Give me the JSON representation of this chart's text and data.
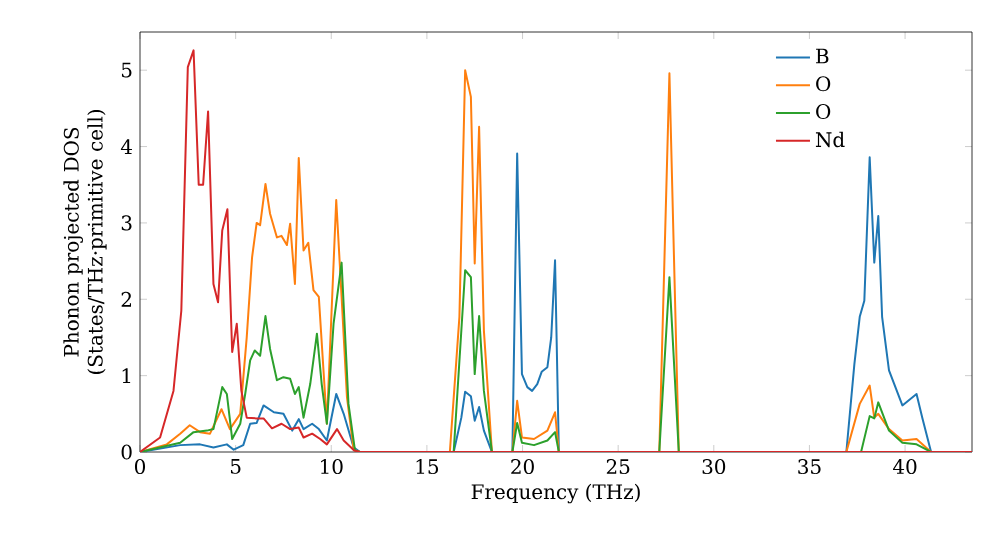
{
  "chart_data": {
    "type": "line",
    "xlabel": "Frequency (THz)",
    "ylabel": "Phonon projected DOS (States/THz·primitive cell)",
    "xlim": [
      0,
      43.5
    ],
    "ylim": [
      0,
      5.5
    ],
    "xticks": [
      0,
      5,
      10,
      15,
      20,
      25,
      30,
      35,
      40
    ],
    "yticks": [
      0,
      1,
      2,
      3,
      4,
      5
    ],
    "legend": "top right",
    "grid": false,
    "marker": "none",
    "line_style": "solid",
    "series": [
      {
        "name": "B",
        "color": "#1f77b4",
        "x": [
          0,
          2.1,
          3.14,
          3.84,
          4.54,
          4.9,
          5.4,
          5.76,
          6.1,
          6.46,
          7.0,
          7.5,
          7.96,
          8.3,
          8.55,
          9.0,
          9.35,
          9.77,
          10.26,
          10.65,
          11.17,
          11.5,
          16.4,
          16.8,
          17.0,
          17.3,
          17.5,
          17.73,
          17.98,
          18.4,
          19.47,
          19.72,
          19.97,
          20.25,
          20.5,
          20.77,
          21.0,
          21.3,
          21.5,
          21.7,
          21.9,
          36.93,
          37.35,
          37.63,
          37.87,
          38.15,
          38.39,
          38.6,
          38.8,
          39.16,
          39.86,
          40.6,
          40.9,
          41.36,
          43.5
        ],
        "values": [
          0,
          0.09,
          0.1,
          0.06,
          0.1,
          0.03,
          0.09,
          0.37,
          0.38,
          0.61,
          0.52,
          0.5,
          0.28,
          0.43,
          0.3,
          0.37,
          0.3,
          0.15,
          0.76,
          0.5,
          0.06,
          0,
          0,
          0.45,
          0.79,
          0.73,
          0.41,
          0.59,
          0.28,
          0,
          0,
          3.91,
          1.02,
          0.85,
          0.8,
          0.89,
          1.05,
          1.11,
          1.5,
          2.51,
          0,
          0,
          1.15,
          1.77,
          1.98,
          3.86,
          2.48,
          3.09,
          1.77,
          1.07,
          0.61,
          0.76,
          0.45,
          0,
          0
        ]
      },
      {
        "name": "O",
        "color": "#ff7f0e",
        "x": [
          0,
          1.4,
          2.1,
          2.6,
          3.14,
          3.66,
          4.26,
          4.7,
          5.24,
          5.58,
          5.86,
          6.1,
          6.28,
          6.56,
          6.8,
          7.16,
          7.4,
          7.68,
          7.85,
          8.1,
          8.3,
          8.55,
          8.8,
          9.07,
          9.35,
          9.77,
          10.26,
          10.54,
          10.82,
          11.17,
          11.5,
          16.2,
          16.7,
          17.0,
          17.3,
          17.5,
          17.73,
          17.98,
          18.4,
          19.47,
          19.72,
          19.97,
          20.6,
          21.3,
          21.7,
          21.9,
          27.15,
          27.68,
          28.17,
          36.93,
          37.63,
          38.15,
          38.39,
          38.6,
          39.16,
          39.86,
          40.6,
          41.36,
          43.5
        ],
        "values": [
          0,
          0.1,
          0.24,
          0.35,
          0.26,
          0.24,
          0.56,
          0.3,
          0.5,
          1.5,
          2.55,
          3.0,
          2.97,
          3.51,
          3.12,
          2.81,
          2.83,
          2.71,
          2.99,
          2.2,
          3.85,
          2.64,
          2.74,
          2.12,
          2.03,
          0.37,
          3.3,
          2.03,
          0.72,
          0.03,
          0,
          0,
          1.77,
          5.0,
          4.65,
          2.47,
          4.26,
          1.59,
          0,
          0,
          0.67,
          0.19,
          0.17,
          0.28,
          0.52,
          0,
          0,
          4.96,
          0,
          0,
          0.63,
          0.87,
          0.45,
          0.5,
          0.3,
          0.15,
          0.17,
          0,
          0
        ]
      },
      {
        "name": "O",
        "color": "#2ca02c",
        "x": [
          0,
          2.1,
          2.8,
          3.5,
          3.84,
          4.3,
          4.54,
          4.82,
          5.24,
          5.5,
          5.76,
          6.0,
          6.28,
          6.56,
          6.8,
          7.16,
          7.5,
          7.85,
          8.1,
          8.3,
          8.55,
          8.9,
          9.25,
          9.5,
          9.77,
          10.12,
          10.54,
          10.9,
          11.24,
          11.5,
          16.4,
          17.0,
          17.3,
          17.5,
          17.73,
          17.98,
          18.4,
          19.47,
          19.72,
          19.97,
          20.6,
          21.3,
          21.7,
          21.9,
          27.15,
          27.68,
          28.17,
          37.7,
          38.15,
          38.39,
          38.6,
          39.16,
          39.86,
          40.6,
          41.36,
          43.5
        ],
        "values": [
          0,
          0.12,
          0.26,
          0.28,
          0.3,
          0.85,
          0.76,
          0.17,
          0.37,
          0.76,
          1.2,
          1.33,
          1.26,
          1.78,
          1.35,
          0.94,
          0.98,
          0.96,
          0.76,
          0.85,
          0.45,
          0.89,
          1.55,
          0.89,
          0.37,
          1.68,
          2.48,
          0.63,
          0.02,
          0,
          0,
          2.38,
          2.29,
          1.02,
          1.78,
          0.8,
          0,
          0,
          0.38,
          0.12,
          0.09,
          0.15,
          0.26,
          0,
          0,
          2.29,
          0,
          0,
          0.47,
          0.44,
          0.65,
          0.28,
          0.12,
          0.1,
          0,
          0
        ]
      },
      {
        "name": "Nd",
        "color": "#d62728",
        "x": [
          0,
          1.05,
          1.75,
          2.16,
          2.5,
          2.8,
          3.07,
          3.3,
          3.56,
          3.84,
          4.08,
          4.3,
          4.57,
          4.82,
          5.06,
          5.3,
          5.58,
          6.1,
          6.46,
          6.9,
          7.4,
          7.85,
          8.3,
          8.55,
          9.0,
          9.42,
          9.77,
          10.3,
          10.65,
          11.2,
          11.5,
          43.5
        ],
        "values": [
          0,
          0.19,
          0.8,
          1.85,
          5.04,
          5.26,
          3.5,
          3.5,
          4.46,
          2.2,
          1.96,
          2.9,
          3.18,
          1.31,
          1.68,
          0.8,
          0.45,
          0.44,
          0.44,
          0.31,
          0.37,
          0.3,
          0.32,
          0.19,
          0.24,
          0.17,
          0.1,
          0.3,
          0.15,
          0.02,
          0,
          0
        ]
      }
    ]
  }
}
